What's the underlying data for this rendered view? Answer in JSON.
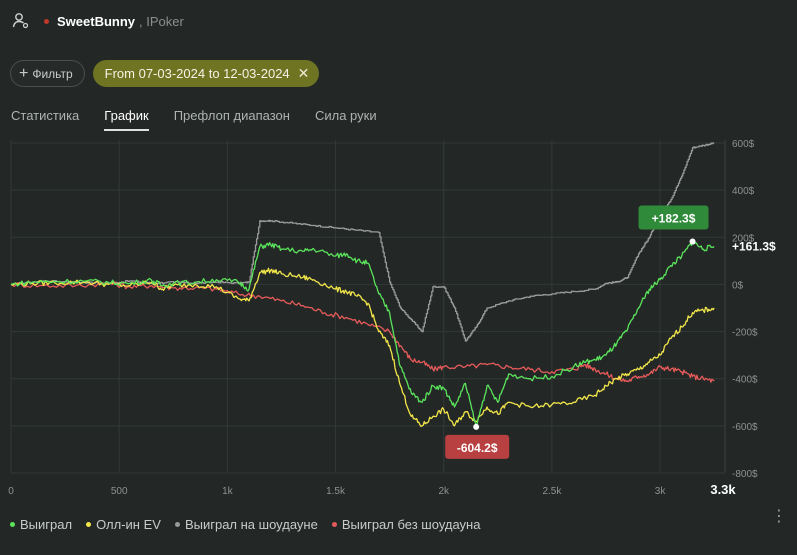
{
  "header": {
    "player": "SweetBunny",
    "network": ", IPoker"
  },
  "filter": {
    "label": "Фильтр",
    "date_range": "From 07-03-2024 to 12-03-2024"
  },
  "tabs": [
    {
      "label": "Статистика",
      "active": false
    },
    {
      "label": "График",
      "active": true
    },
    {
      "label": "Префлоп диапазон",
      "active": false
    },
    {
      "label": "Сила руки",
      "active": false
    }
  ],
  "colors": {
    "won": "#5be35b",
    "allin_ev": "#f2e64a",
    "showdown": "#9a9a9a",
    "non_showdown": "#e65a5a",
    "badge_max": "#2f8a3a",
    "badge_min": "#b84040"
  },
  "chart_data": {
    "type": "line",
    "x_ticks": [
      "0",
      "500",
      "1k",
      "1.5k",
      "2k",
      "2.5k",
      "3k"
    ],
    "x_end_label": "3.3k",
    "y_ticks": [
      "600$",
      "400$",
      "200$",
      "0$",
      "-200$",
      "-400$",
      "-600$",
      "-800$"
    ],
    "xlim": [
      0,
      3300
    ],
    "ylim": [
      -800,
      600
    ],
    "annotations": {
      "max": "+182.3$",
      "min": "-604.2$",
      "final": "+161.3$"
    },
    "series": [
      {
        "name": "Выиграл",
        "key": "won",
        "points": [
          [
            0,
            0
          ],
          [
            100,
            10
          ],
          [
            200,
            12
          ],
          [
            350,
            15
          ],
          [
            450,
            8
          ],
          [
            550,
            5
          ],
          [
            650,
            18
          ],
          [
            700,
            -5
          ],
          [
            750,
            5
          ],
          [
            850,
            10
          ],
          [
            950,
            20
          ],
          [
            1050,
            10
          ],
          [
            1100,
            -20
          ],
          [
            1150,
            160
          ],
          [
            1200,
            170
          ],
          [
            1250,
            150
          ],
          [
            1350,
            140
          ],
          [
            1400,
            150
          ],
          [
            1500,
            120
          ],
          [
            1550,
            130
          ],
          [
            1600,
            100
          ],
          [
            1650,
            90
          ],
          [
            1700,
            -40
          ],
          [
            1750,
            -120
          ],
          [
            1800,
            -350
          ],
          [
            1850,
            -460
          ],
          [
            1900,
            -500
          ],
          [
            1950,
            -430
          ],
          [
            2000,
            -440
          ],
          [
            2050,
            -520
          ],
          [
            2100,
            -420
          ],
          [
            2150,
            -604
          ],
          [
            2200,
            -430
          ],
          [
            2250,
            -500
          ],
          [
            2300,
            -380
          ],
          [
            2400,
            -400
          ],
          [
            2500,
            -390
          ],
          [
            2600,
            -350
          ],
          [
            2650,
            -330
          ],
          [
            2700,
            -320
          ],
          [
            2750,
            -300
          ],
          [
            2800,
            -250
          ],
          [
            2850,
            -190
          ],
          [
            2900,
            -100
          ],
          [
            2950,
            -20
          ],
          [
            3000,
            20
          ],
          [
            3050,
            80
          ],
          [
            3100,
            120
          ],
          [
            3150,
            182
          ],
          [
            3200,
            150
          ],
          [
            3250,
            161
          ]
        ]
      },
      {
        "name": "Олл-ин EV",
        "key": "allin_ev",
        "points": [
          [
            0,
            0
          ],
          [
            100,
            5
          ],
          [
            200,
            8
          ],
          [
            350,
            10
          ],
          [
            450,
            0
          ],
          [
            550,
            -5
          ],
          [
            650,
            10
          ],
          [
            700,
            -20
          ],
          [
            750,
            -5
          ],
          [
            850,
            0
          ],
          [
            950,
            -10
          ],
          [
            1050,
            -60
          ],
          [
            1100,
            -70
          ],
          [
            1150,
            50
          ],
          [
            1200,
            60
          ],
          [
            1250,
            45
          ],
          [
            1350,
            30
          ],
          [
            1400,
            20
          ],
          [
            1500,
            -20
          ],
          [
            1550,
            -30
          ],
          [
            1600,
            -50
          ],
          [
            1650,
            -80
          ],
          [
            1700,
            -200
          ],
          [
            1750,
            -260
          ],
          [
            1800,
            -430
          ],
          [
            1850,
            -560
          ],
          [
            1900,
            -600
          ],
          [
            1950,
            -560
          ],
          [
            2000,
            -530
          ],
          [
            2050,
            -600
          ],
          [
            2100,
            -540
          ],
          [
            2150,
            -580
          ],
          [
            2200,
            -520
          ],
          [
            2250,
            -550
          ],
          [
            2300,
            -500
          ],
          [
            2400,
            -520
          ],
          [
            2500,
            -510
          ],
          [
            2600,
            -500
          ],
          [
            2700,
            -470
          ],
          [
            2750,
            -430
          ],
          [
            2800,
            -400
          ],
          [
            2850,
            -380
          ],
          [
            2900,
            -360
          ],
          [
            2950,
            -330
          ],
          [
            3000,
            -300
          ],
          [
            3050,
            -230
          ],
          [
            3100,
            -180
          ],
          [
            3150,
            -120
          ],
          [
            3200,
            -110
          ],
          [
            3250,
            -100
          ]
        ]
      },
      {
        "name": "Выиграл на шоудауне",
        "key": "showdown",
        "points": [
          [
            0,
            0
          ],
          [
            150,
            15
          ],
          [
            300,
            10
          ],
          [
            450,
            5
          ],
          [
            550,
            15
          ],
          [
            650,
            5
          ],
          [
            750,
            10
          ],
          [
            850,
            5
          ],
          [
            950,
            10
          ],
          [
            1050,
            5
          ],
          [
            1100,
            10
          ],
          [
            1150,
            270
          ],
          [
            1200,
            270
          ],
          [
            1300,
            260
          ],
          [
            1400,
            250
          ],
          [
            1500,
            240
          ],
          [
            1600,
            230
          ],
          [
            1700,
            220
          ],
          [
            1750,
            10
          ],
          [
            1800,
            -100
          ],
          [
            1850,
            -150
          ],
          [
            1900,
            -200
          ],
          [
            1950,
            -10
          ],
          [
            2000,
            -10
          ],
          [
            2050,
            -100
          ],
          [
            2100,
            -240
          ],
          [
            2150,
            -180
          ],
          [
            2200,
            -100
          ],
          [
            2300,
            -70
          ],
          [
            2400,
            -50
          ],
          [
            2500,
            -40
          ],
          [
            2600,
            -30
          ],
          [
            2700,
            -20
          ],
          [
            2750,
            5
          ],
          [
            2800,
            10
          ],
          [
            2850,
            30
          ],
          [
            2900,
            130
          ],
          [
            2950,
            200
          ],
          [
            3000,
            300
          ],
          [
            3050,
            360
          ],
          [
            3100,
            460
          ],
          [
            3150,
            580
          ],
          [
            3200,
            590
          ],
          [
            3250,
            600
          ]
        ]
      },
      {
        "name": "Выиграл без шоудауна",
        "key": "non_showdown",
        "points": [
          [
            0,
            0
          ],
          [
            150,
            -5
          ],
          [
            300,
            -5
          ],
          [
            450,
            5
          ],
          [
            550,
            -10
          ],
          [
            650,
            -5
          ],
          [
            750,
            -15
          ],
          [
            850,
            -15
          ],
          [
            950,
            -20
          ],
          [
            1050,
            -40
          ],
          [
            1150,
            -50
          ],
          [
            1250,
            -70
          ],
          [
            1350,
            -90
          ],
          [
            1450,
            -120
          ],
          [
            1550,
            -140
          ],
          [
            1650,
            -170
          ],
          [
            1750,
            -200
          ],
          [
            1800,
            -260
          ],
          [
            1850,
            -320
          ],
          [
            1900,
            -330
          ],
          [
            1950,
            -360
          ],
          [
            2000,
            -350
          ],
          [
            2100,
            -350
          ],
          [
            2200,
            -340
          ],
          [
            2300,
            -350
          ],
          [
            2400,
            -360
          ],
          [
            2500,
            -370
          ],
          [
            2600,
            -360
          ],
          [
            2650,
            -340
          ],
          [
            2700,
            -360
          ],
          [
            2750,
            -380
          ],
          [
            2800,
            -400
          ],
          [
            2850,
            -410
          ],
          [
            2900,
            -390
          ],
          [
            2950,
            -380
          ],
          [
            3000,
            -350
          ],
          [
            3050,
            -360
          ],
          [
            3100,
            -370
          ],
          [
            3150,
            -390
          ],
          [
            3200,
            -400
          ],
          [
            3250,
            -410
          ]
        ]
      }
    ]
  },
  "legend": [
    {
      "label": "Выиграл",
      "key": "won"
    },
    {
      "label": "Олл-ин EV",
      "key": "allin_ev"
    },
    {
      "label": "Выиграл на шоудауне",
      "key": "showdown"
    },
    {
      "label": "Выиграл без шоудауна",
      "key": "non_showdown"
    }
  ]
}
